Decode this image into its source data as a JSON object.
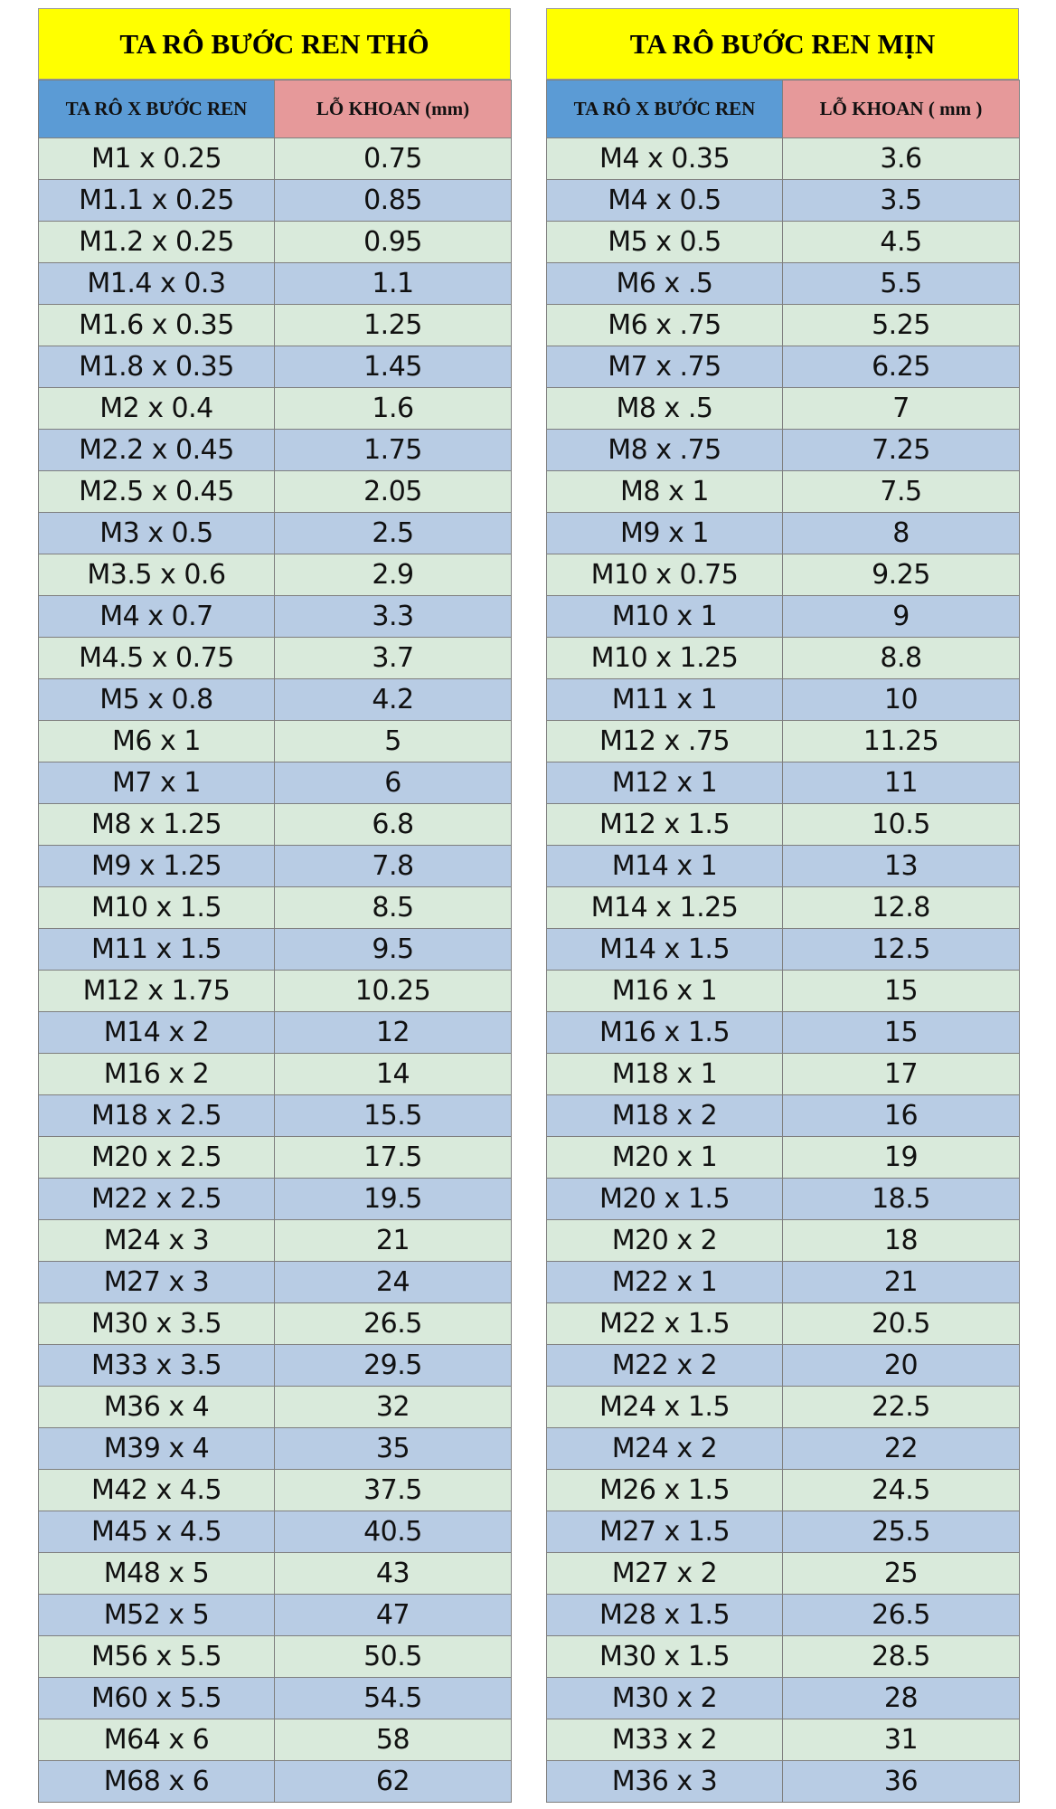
{
  "coarse": {
    "title": "TA RÔ BƯỚC REN THÔ",
    "col_tap": "TA RÔ X BƯỚC REN",
    "col_drill": "LỖ KHOAN (mm)",
    "rows": [
      [
        "M1 x 0.25",
        "0.75"
      ],
      [
        "M1.1 x 0.25",
        "0.85"
      ],
      [
        "M1.2 x 0.25",
        "0.95"
      ],
      [
        "M1.4 x 0.3",
        "1.1"
      ],
      [
        "M1.6 x 0.35",
        "1.25"
      ],
      [
        "M1.8 x 0.35",
        "1.45"
      ],
      [
        "M2 x 0.4",
        "1.6"
      ],
      [
        "M2.2 x 0.45",
        "1.75"
      ],
      [
        "M2.5 x 0.45",
        "2.05"
      ],
      [
        "M3 x 0.5",
        "2.5"
      ],
      [
        "M3.5 x 0.6",
        "2.9"
      ],
      [
        "M4 x 0.7",
        "3.3"
      ],
      [
        "M4.5 x 0.75",
        "3.7"
      ],
      [
        "M5 x 0.8",
        "4.2"
      ],
      [
        "M6 x 1",
        "5"
      ],
      [
        "M7 x 1",
        "6"
      ],
      [
        "M8 x 1.25",
        "6.8"
      ],
      [
        "M9 x 1.25",
        "7.8"
      ],
      [
        "M10 x 1.5",
        "8.5"
      ],
      [
        "M11 x 1.5",
        "9.5"
      ],
      [
        "M12 x 1.75",
        "10.25"
      ],
      [
        "M14 x 2",
        "12"
      ],
      [
        "M16 x 2",
        "14"
      ],
      [
        "M18 x 2.5",
        "15.5"
      ],
      [
        "M20 x 2.5",
        "17.5"
      ],
      [
        "M22 x 2.5",
        "19.5"
      ],
      [
        "M24 x 3",
        "21"
      ],
      [
        "M27 x 3",
        "24"
      ],
      [
        "M30 x 3.5",
        "26.5"
      ],
      [
        "M33 x 3.5",
        "29.5"
      ],
      [
        "M36 x 4",
        "32"
      ],
      [
        "M39 x 4",
        "35"
      ],
      [
        "M42 x 4.5",
        "37.5"
      ],
      [
        "M45 x 4.5",
        "40.5"
      ],
      [
        "M48 x 5",
        "43"
      ],
      [
        "M52 x 5",
        "47"
      ],
      [
        "M56 x 5.5",
        "50.5"
      ],
      [
        "M60 x 5.5",
        "54.5"
      ],
      [
        "M64 x 6",
        "58"
      ],
      [
        "M68 x 6",
        "62"
      ]
    ]
  },
  "fine": {
    "title": "TA RÔ BƯỚC REN MỊN",
    "col_tap": "TA RÔ X BƯỚC REN",
    "col_drill": "LỖ KHOAN ( mm )",
    "rows": [
      [
        "M4 x 0.35",
        "3.6"
      ],
      [
        "M4 x 0.5",
        "3.5"
      ],
      [
        "M5 x 0.5",
        "4.5"
      ],
      [
        "M6 x .5",
        "5.5"
      ],
      [
        "M6 x .75",
        "5.25"
      ],
      [
        "M7 x .75",
        "6.25"
      ],
      [
        "M8 x .5",
        "7"
      ],
      [
        "M8 x .75",
        "7.25"
      ],
      [
        "M8 x 1",
        "7.5"
      ],
      [
        "M9 x 1",
        "8"
      ],
      [
        "M10 x 0.75",
        "9.25"
      ],
      [
        "M10 x 1",
        "9"
      ],
      [
        "M10 x 1.25",
        "8.8"
      ],
      [
        "M11 x 1",
        "10"
      ],
      [
        "M12 x .75",
        "11.25"
      ],
      [
        "M12 x 1",
        "11"
      ],
      [
        "M12 x 1.5",
        "10.5"
      ],
      [
        "M14 x 1",
        "13"
      ],
      [
        "M14 x 1.25",
        "12.8"
      ],
      [
        "M14 x 1.5",
        "12.5"
      ],
      [
        "M16 x 1",
        "15"
      ],
      [
        "M16 x 1.5",
        "15"
      ],
      [
        "M18 x 1",
        "17"
      ],
      [
        "M18 x 2",
        "16"
      ],
      [
        "M20 x 1",
        "19"
      ],
      [
        "M20 x 1.5",
        "18.5"
      ],
      [
        "M20 x 2",
        "18"
      ],
      [
        "M22 x 1",
        "21"
      ],
      [
        "M22 x 1.5",
        "20.5"
      ],
      [
        "M22 x 2",
        "20"
      ],
      [
        "M24 x 1.5",
        "22.5"
      ],
      [
        "M24 x 2",
        "22"
      ],
      [
        "M26 x 1.5",
        "24.5"
      ],
      [
        "M27 x 1.5",
        "25.5"
      ],
      [
        "M27 x 2",
        "25"
      ],
      [
        "M28 x 1.5",
        "26.5"
      ],
      [
        "M30 x 1.5",
        "28.5"
      ],
      [
        "M30 x 2",
        "28"
      ],
      [
        "M33 x 2",
        "31"
      ],
      [
        "M36 x 3",
        "36"
      ]
    ]
  }
}
